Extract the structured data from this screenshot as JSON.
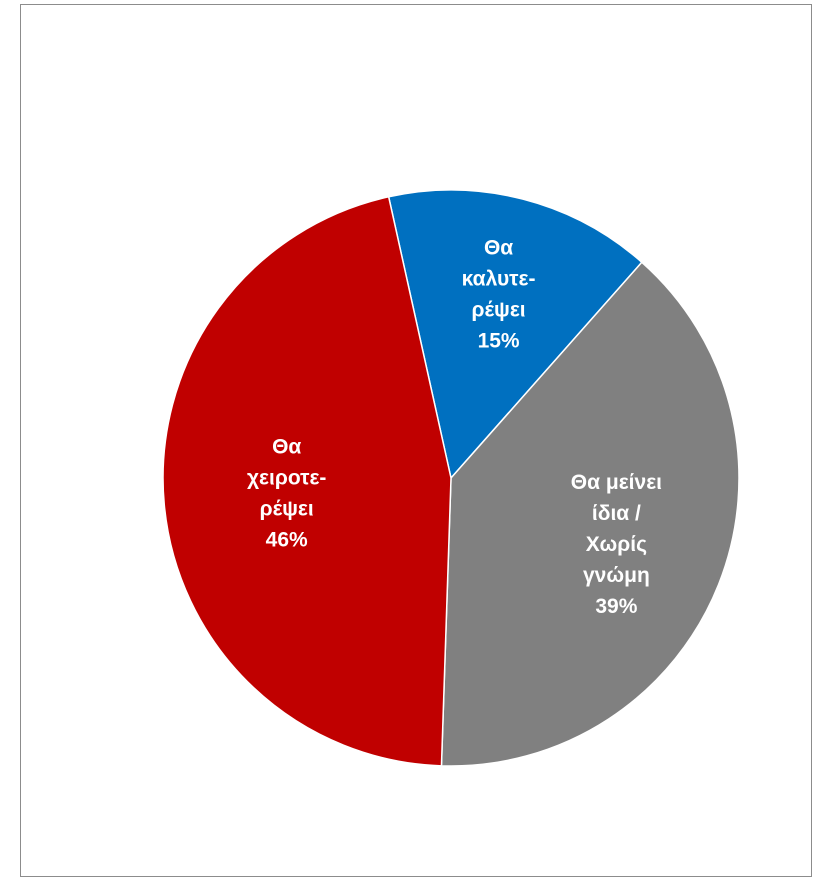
{
  "chart_data": {
    "type": "pie",
    "slices": [
      {
        "label_lines": [
          "Θα",
          "καλυτε-",
          "ρέψει"
        ],
        "percent_label": "15%",
        "value": 15,
        "color": "#0070c0"
      },
      {
        "label_lines": [
          "Θα μείνει",
          "ίδια /",
          "Χωρίς",
          "γνώμη"
        ],
        "percent_label": "39%",
        "value": 39,
        "color": "#808080"
      },
      {
        "label_lines": [
          "Θα",
          "χειροτε-",
          "ρέψει"
        ],
        "percent_label": "46%",
        "value": 46,
        "color": "#c00000"
      }
    ],
    "start_angle_deg": -12.5,
    "direction": "clockwise",
    "slice_border_color": "#ffffff",
    "label_color": "#ffffff"
  }
}
